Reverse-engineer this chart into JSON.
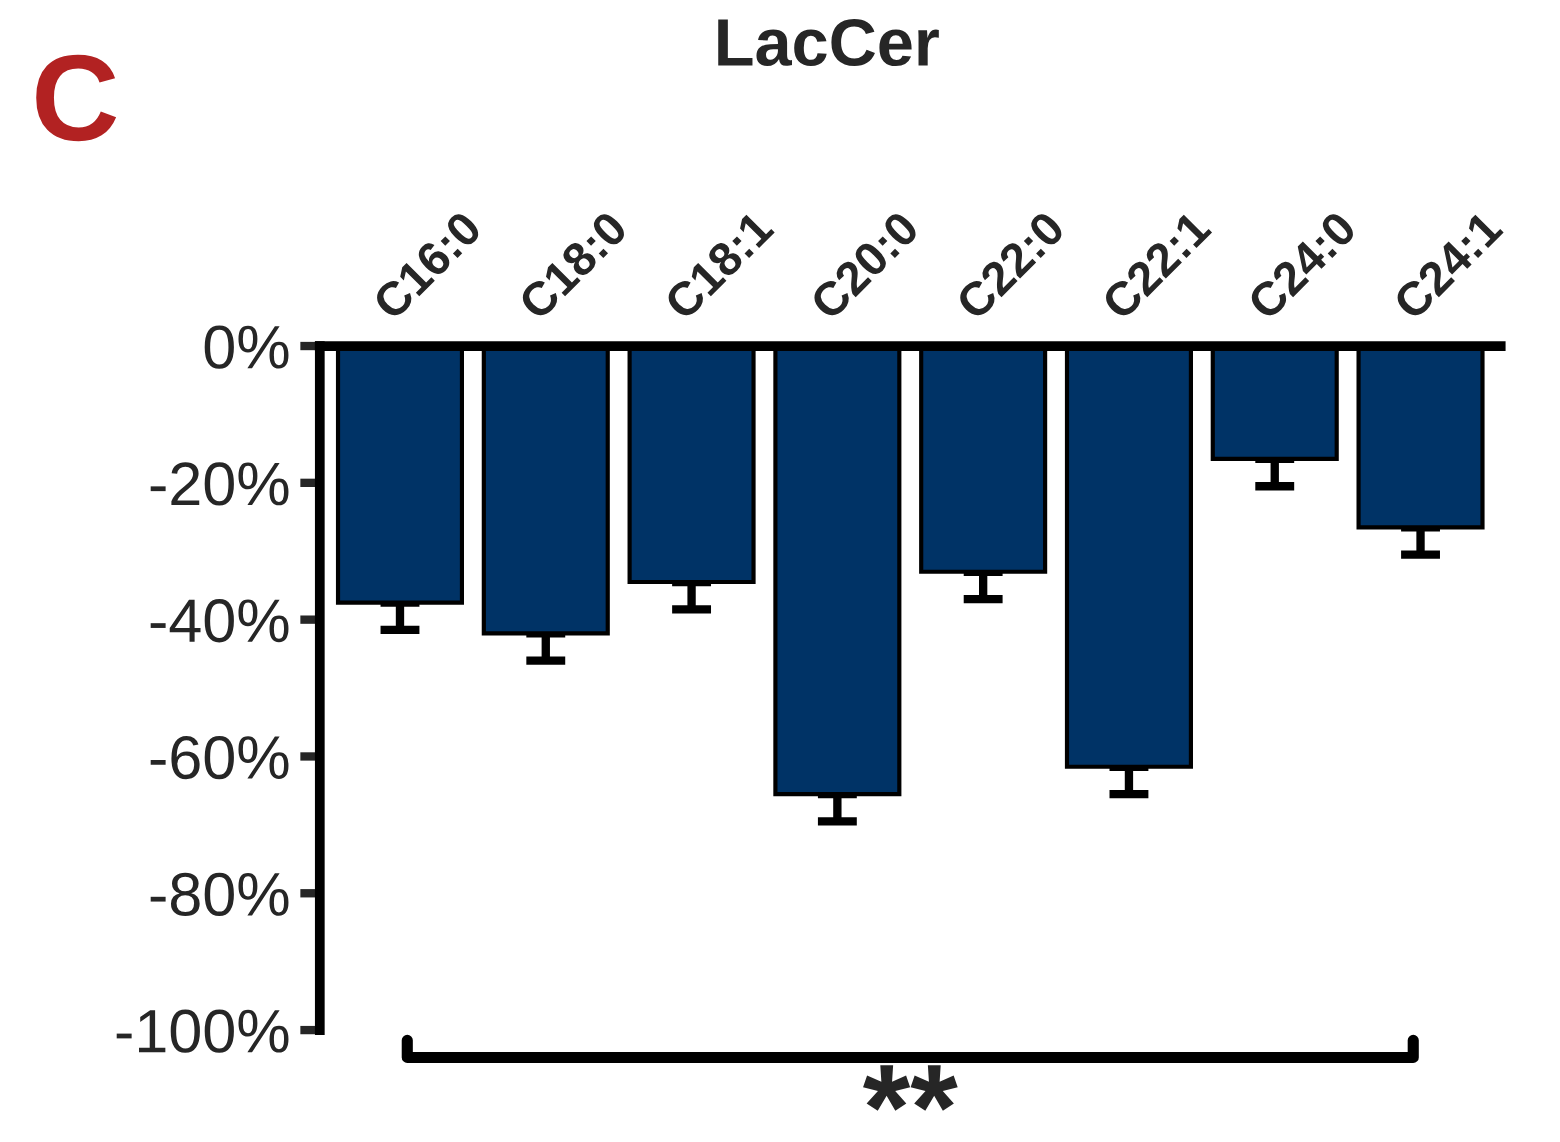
{
  "chart_data": {
    "type": "bar",
    "title": "LacCer",
    "categories": [
      "C16:0",
      "C18:0",
      "C18:1",
      "C20:0",
      "C22:0",
      "C22:1",
      "C24:0",
      "C24:1"
    ],
    "values": [
      -37.5,
      -42,
      -34.5,
      -65.5,
      -33,
      -61.5,
      -16.5,
      -26.5
    ],
    "errors": [
      [
        -41.5,
        -37.5
      ],
      [
        -46,
        -42
      ],
      [
        -38.5,
        -34.5
      ],
      [
        -69.5,
        -65.5
      ],
      [
        -37,
        -33
      ],
      [
        -65.5,
        -61.5
      ],
      [
        -20.5,
        -16.5
      ],
      [
        -30.5,
        -26.5
      ]
    ],
    "color": "#003366",
    "ylim": [
      -100,
      0
    ],
    "yticks": [
      {
        "value": -100,
        "label": "-100%"
      },
      {
        "value": -80,
        "label": "-80%"
      },
      {
        "value": -60,
        "label": "-60%"
      },
      {
        "value": -40,
        "label": "-40%"
      },
      {
        "value": -20,
        "label": "-20%"
      },
      {
        "value": 0,
        "label": "0%"
      }
    ],
    "annotations": [
      "C",
      "**"
    ]
  }
}
